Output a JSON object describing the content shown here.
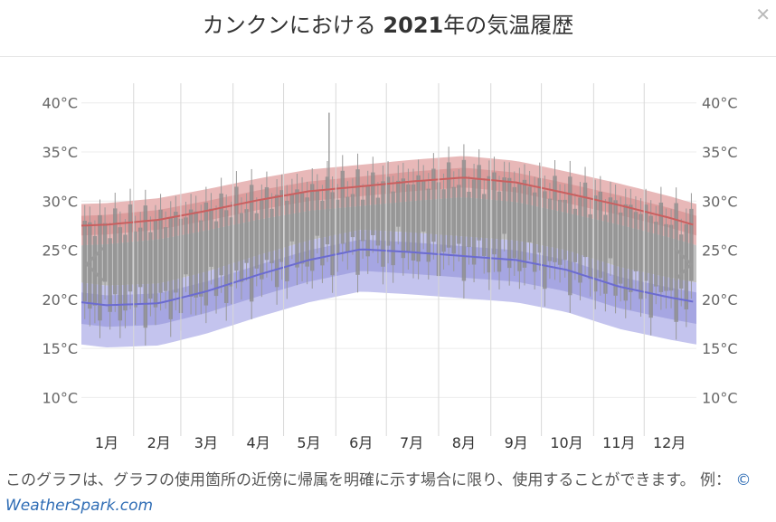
{
  "header": {
    "title_prefix": "カンクンにおける",
    "title_year": "2021",
    "title_suffix": "年の気温履歴",
    "close_icon": "close-icon"
  },
  "caption": {
    "text": "このグラフは、グラフの使用箇所の近傍に帰属を明確に示す場合に限り、使用することができます。 例：",
    "credit": "© WeatherSpark.com"
  },
  "nav": {
    "prev_icon": "chevron-left-icon",
    "next_icon": "chevron-right-icon"
  },
  "chart_data": {
    "type": "area",
    "ylim": [
      7,
      42
    ],
    "yticks_left": [
      "10°C",
      "15°C",
      "20°C",
      "25°C",
      "30°C",
      "35°C",
      "40°C"
    ],
    "yticks_right": [
      "10°C",
      "15°C",
      "20°C",
      "25°C",
      "30°C",
      "35°C",
      "40°C"
    ],
    "ytick_values": [
      10,
      15,
      20,
      25,
      30,
      35,
      40
    ],
    "months": [
      "1月",
      "2月",
      "3月",
      "4月",
      "5月",
      "6月",
      "7月",
      "8月",
      "9月",
      "10月",
      "11月",
      "12月"
    ],
    "x": [
      0,
      15,
      46,
      74,
      105,
      135,
      166,
      196,
      227,
      258,
      288,
      319,
      349,
      365
    ],
    "avg_high": [
      27.5,
      27.6,
      28.1,
      29.0,
      30.1,
      31.0,
      31.5,
      32.0,
      32.4,
      31.9,
      30.8,
      29.6,
      28.3,
      27.5
    ],
    "avg_low": [
      19.7,
      19.4,
      19.6,
      20.8,
      22.5,
      24.0,
      25.1,
      24.8,
      24.4,
      24.0,
      23.0,
      21.3,
      20.2,
      19.7
    ],
    "colors": {
      "high": "#c95f5f",
      "low": "#6b6bd0",
      "high_band": "#e8b8b8",
      "low_band": "#c4c4ee",
      "mid_band": "#c0c0c0",
      "bar": "#8a8a8a"
    }
  }
}
